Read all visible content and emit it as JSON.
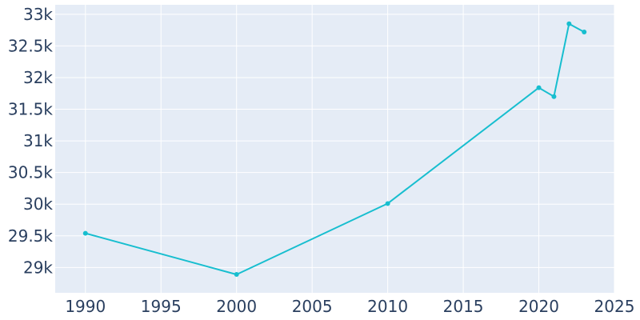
{
  "chart_data": {
    "type": "line",
    "title": "",
    "xlabel": "",
    "ylabel": "",
    "xlim": [
      1988,
      2025
    ],
    "ylim": [
      28600,
      33150
    ],
    "x_ticks": [
      1990,
      1995,
      2000,
      2005,
      2010,
      2015,
      2020,
      2025
    ],
    "x_tick_labels": [
      "1990",
      "1995",
      "2000",
      "2005",
      "2010",
      "2015",
      "2020",
      "2025"
    ],
    "y_ticks": [
      29000,
      29500,
      30000,
      30500,
      31000,
      31500,
      32000,
      32500,
      33000
    ],
    "y_tick_labels": [
      "29k",
      "29.5k",
      "30k",
      "30.5k",
      "31k",
      "31.5k",
      "32k",
      "32.5k",
      "33k"
    ],
    "grid": true,
    "series": [
      {
        "color": "#17becf",
        "x": [
          1990,
          2000,
          2010,
          2020,
          2021,
          2022,
          2023
        ],
        "y": [
          29540,
          28890,
          30010,
          31840,
          31700,
          32850,
          32720
        ]
      }
    ]
  },
  "colors": {
    "plot_background": "#e5ecf6",
    "grid": "#ffffff",
    "tick_text": "#2a3f5f",
    "line": "#17becf"
  }
}
